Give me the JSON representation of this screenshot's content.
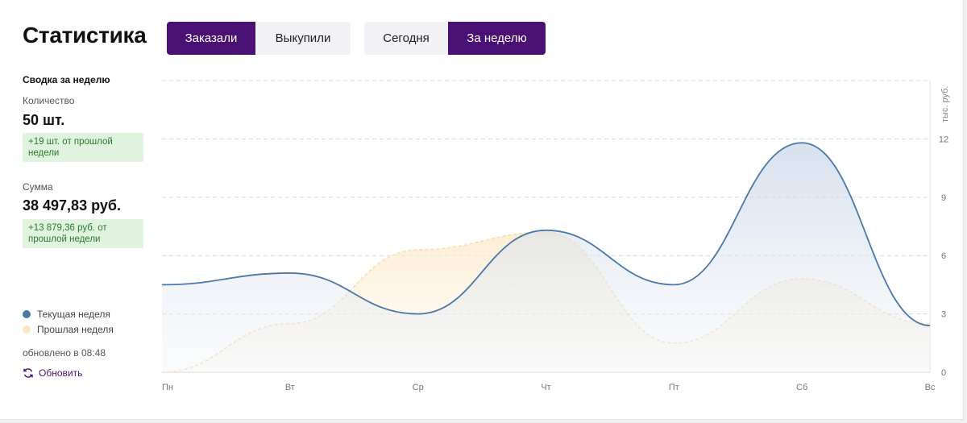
{
  "header": {
    "title": "Статистика",
    "metric_tabs": [
      {
        "label": "Заказали",
        "active": true
      },
      {
        "label": "Выкупили",
        "active": false
      }
    ],
    "period_tabs": [
      {
        "label": "Сегодня",
        "active": false
      },
      {
        "label": "За неделю",
        "active": true
      }
    ]
  },
  "summary": {
    "title": "Сводка за неделю",
    "quantity_label": "Количество",
    "quantity_value": "50 шт.",
    "quantity_delta": "+19 шт. от прошлой недели",
    "sum_label": "Сумма",
    "sum_value": "38 497,83 руб.",
    "sum_delta": "+13 879,36 руб. от прошлой недели"
  },
  "legend": {
    "current": "Текущая неделя",
    "previous": "Прошлая неделя"
  },
  "updated": "обновлено в 08:48",
  "refresh_label": "Обновить",
  "colors": {
    "accent": "#481173",
    "current_line": "#4a78a8",
    "previous_line": "#f5deb0",
    "delta_bg": "#dff3df",
    "delta_text": "#2c7a2c"
  },
  "chart_data": {
    "type": "area",
    "x": [
      "Пн",
      "Вт",
      "Ср",
      "Чт",
      "Пт",
      "Сб",
      "Вс"
    ],
    "ylabel": "тыс. руб.",
    "ylim": [
      0,
      15
    ],
    "yticks": [
      0,
      3,
      6,
      9,
      12
    ],
    "grid": true,
    "series": [
      {
        "name": "Текущая неделя",
        "values": [
          4.5,
          5.1,
          3.0,
          7.3,
          4.5,
          11.8,
          2.4
        ]
      },
      {
        "name": "Прошлая неделя",
        "values": [
          0.0,
          2.5,
          6.3,
          7.2,
          1.5,
          4.8,
          2.5
        ]
      }
    ]
  }
}
